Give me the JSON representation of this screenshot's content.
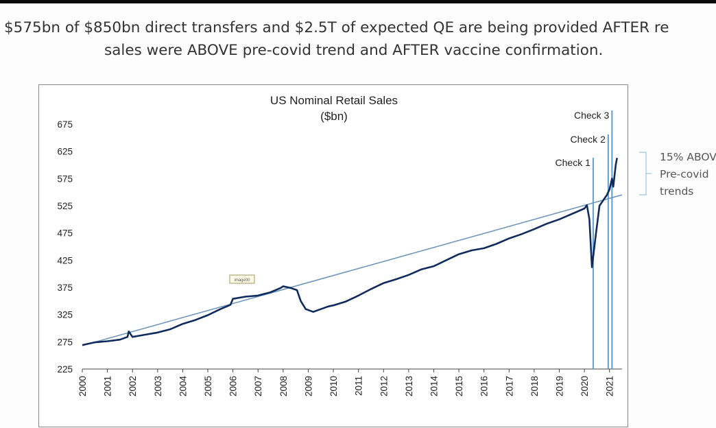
{
  "headline": {
    "line1": "$575bn of $850bn direct transfers and $2.5T of expected QE are being provided AFTER re",
    "line2": "sales were ABOVE pre-covid trend and AFTER vaccine confirmation."
  },
  "side_note": {
    "line1": "15% ABOV",
    "line2": "Pre-covid",
    "line3": "trends"
  },
  "colors": {
    "series": "#0f2a5c",
    "trend": "#6f96bd",
    "check_lines": "#5f9fcf",
    "bracket": "#9cc3de"
  },
  "chart_data": {
    "type": "line",
    "title": "US Nominal Retail Sales",
    "subtitle": "($bn)",
    "xlabel": "",
    "ylabel": "",
    "ylim": [
      225,
      675
    ],
    "yticks": [
      225,
      275,
      325,
      375,
      425,
      475,
      525,
      575,
      625,
      675
    ],
    "xlim": [
      2000,
      2021.5
    ],
    "xticks": [
      "2000",
      "2001",
      "2002",
      "2003",
      "2004",
      "2005",
      "2006",
      "2007",
      "2008",
      "2009",
      "2010",
      "2011",
      "2012",
      "2013",
      "2014",
      "2015",
      "2016",
      "2017",
      "2018",
      "2019",
      "2020",
      "2021"
    ],
    "grid": false,
    "legend": "none",
    "small_label": "image00",
    "series": [
      {
        "points": [
          [
            2000.0,
            269
          ],
          [
            2000.5,
            274
          ],
          [
            2001.0,
            276
          ],
          [
            2001.5,
            279
          ],
          [
            2001.8,
            284
          ],
          [
            2001.85,
            294
          ],
          [
            2002.0,
            284
          ],
          [
            2002.5,
            288
          ],
          [
            2003.0,
            292
          ],
          [
            2003.5,
            298
          ],
          [
            2004.0,
            308
          ],
          [
            2004.5,
            315
          ],
          [
            2005.0,
            324
          ],
          [
            2005.5,
            335
          ],
          [
            2005.9,
            343
          ],
          [
            2006.0,
            354
          ],
          [
            2006.5,
            358
          ],
          [
            2007.0,
            360
          ],
          [
            2007.5,
            366
          ],
          [
            2007.9,
            374
          ],
          [
            2008.0,
            377
          ],
          [
            2008.3,
            374
          ],
          [
            2008.55,
            370
          ],
          [
            2008.7,
            350
          ],
          [
            2008.9,
            335
          ],
          [
            2009.2,
            330
          ],
          [
            2009.5,
            335
          ],
          [
            2009.8,
            340
          ],
          [
            2010.0,
            342
          ],
          [
            2010.5,
            349
          ],
          [
            2011.0,
            360
          ],
          [
            2011.5,
            372
          ],
          [
            2012.0,
            383
          ],
          [
            2012.5,
            390
          ],
          [
            2013.0,
            398
          ],
          [
            2013.5,
            408
          ],
          [
            2014.0,
            414
          ],
          [
            2014.5,
            425
          ],
          [
            2015.0,
            436
          ],
          [
            2015.5,
            443
          ],
          [
            2016.0,
            447
          ],
          [
            2016.5,
            455
          ],
          [
            2017.0,
            465
          ],
          [
            2017.5,
            473
          ],
          [
            2018.0,
            482
          ],
          [
            2018.5,
            492
          ],
          [
            2019.0,
            500
          ],
          [
            2019.5,
            510
          ],
          [
            2020.0,
            520
          ],
          [
            2020.1,
            526
          ],
          [
            2020.2,
            500
          ],
          [
            2020.3,
            412
          ],
          [
            2020.45,
            470
          ],
          [
            2020.6,
            525
          ],
          [
            2020.9,
            545
          ],
          [
            2021.0,
            555
          ],
          [
            2021.1,
            575
          ],
          [
            2021.15,
            560
          ],
          [
            2021.25,
            600
          ],
          [
            2021.3,
            613
          ]
        ]
      },
      {
        "points": [
          [
            2000.0,
            268
          ],
          [
            2021.5,
            545
          ]
        ]
      }
    ],
    "annotations": [
      {
        "label": "Check 1",
        "x": 2020.35
      },
      {
        "label": "Check 2",
        "x": 2020.95
      },
      {
        "label": "Check 3",
        "x": 2021.1
      }
    ]
  }
}
